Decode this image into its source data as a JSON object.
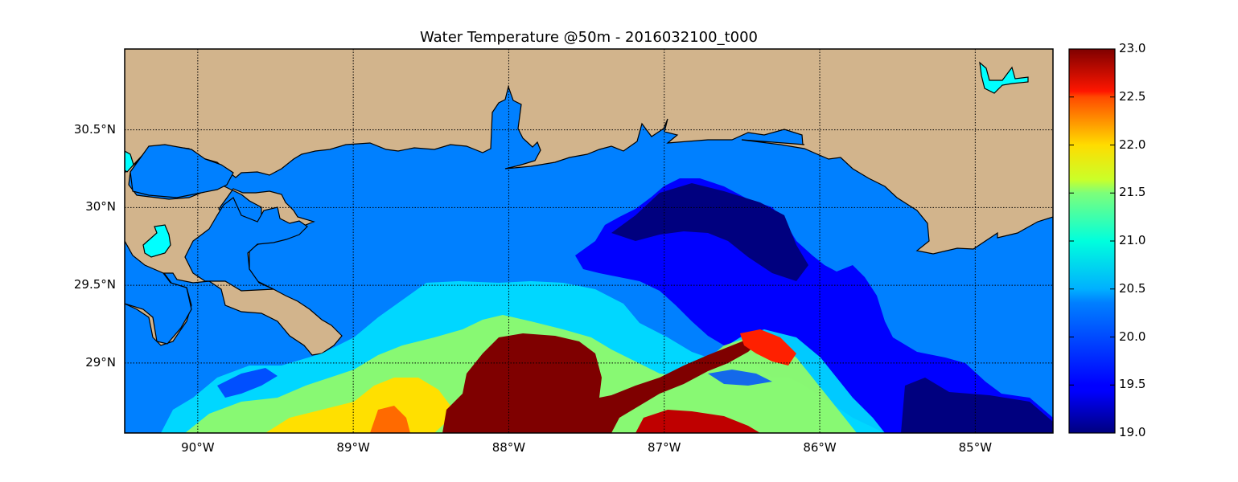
{
  "title": "Water Temperature @50m - 2016032100_t000",
  "map": {
    "lon_range": [
      -90.47,
      -84.5
    ],
    "lat_range": [
      28.55,
      31.02
    ],
    "lat_ticks": [
      {
        "value": 30.5,
        "label": "30.5°N"
      },
      {
        "value": 30.0,
        "label": "30°N"
      },
      {
        "value": 29.5,
        "label": "29.5°N"
      },
      {
        "value": 29.0,
        "label": "29°N"
      }
    ],
    "lon_ticks": [
      {
        "value": -90,
        "label": "90°W"
      },
      {
        "value": -89,
        "label": "89°W"
      },
      {
        "value": -88,
        "label": "88°W"
      },
      {
        "value": -87,
        "label": "87°W"
      },
      {
        "value": -86,
        "label": "86°W"
      },
      {
        "value": -85,
        "label": "85°W"
      }
    ],
    "colors": {
      "land": "#d2b48c",
      "nodata_water": "#0080ff",
      "lakes": "#00ffff",
      "grid": "#000000"
    }
  },
  "colorbar": {
    "colormap": "jet",
    "min": 19.0,
    "max": 23.0,
    "tick_labels": [
      "23.0",
      "22.5",
      "22.0",
      "21.5",
      "21.0",
      "20.5",
      "20.0",
      "19.5",
      "19.0"
    ]
  }
}
